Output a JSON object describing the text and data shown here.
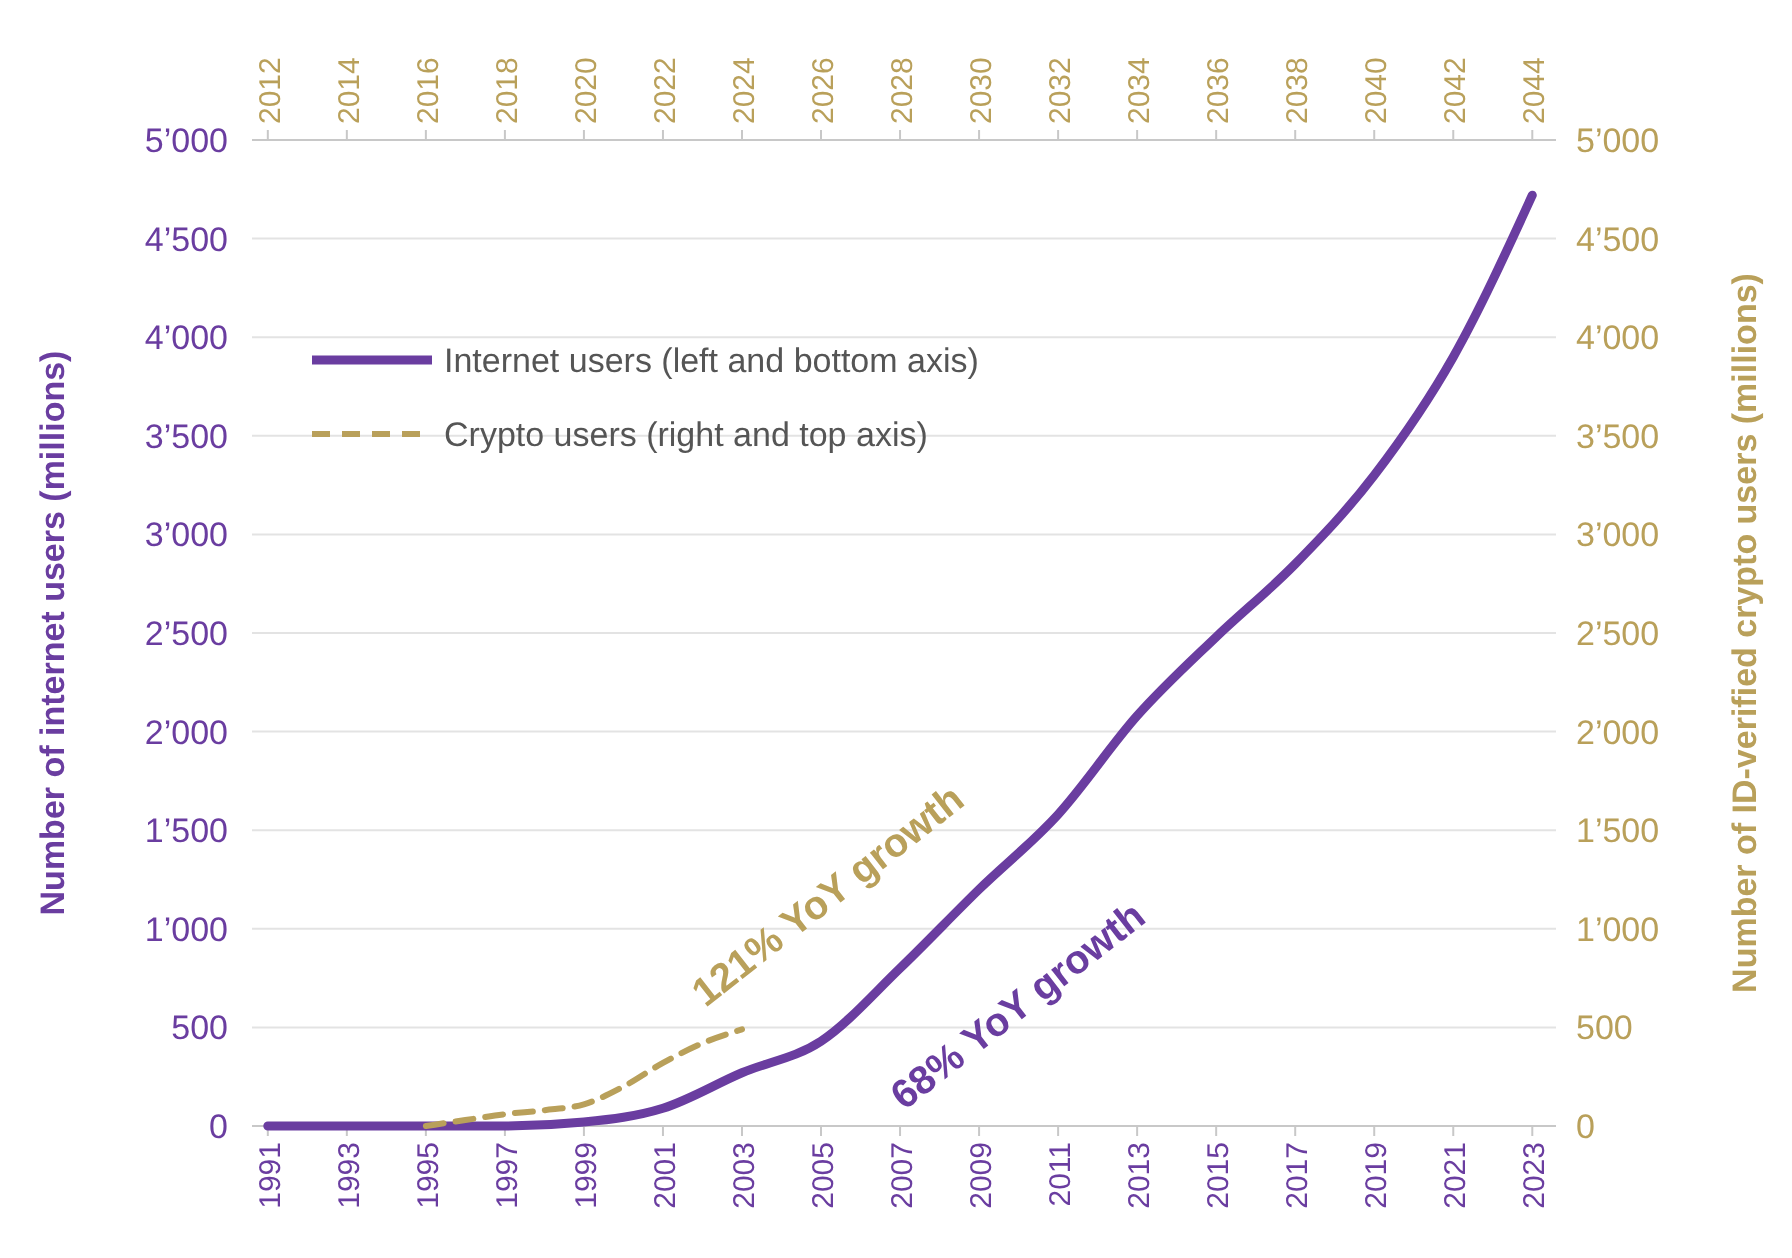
{
  "chart_data": {
    "type": "line",
    "ylabel": "Number of internet users (millions)",
    "y2label": "Number of ID-verified crypto users (millions)",
    "xlim": [
      1990.6,
      2023.6
    ],
    "xticks": [
      1991,
      1993,
      1995,
      1997,
      1999,
      2001,
      2003,
      2005,
      2007,
      2009,
      2011,
      2013,
      2015,
      2017,
      2019,
      2021,
      2023
    ],
    "x2lim": [
      2011.6,
      2044.6
    ],
    "x2ticks": [
      2012,
      2014,
      2016,
      2018,
      2020,
      2022,
      2024,
      2026,
      2028,
      2030,
      2032,
      2034,
      2036,
      2038,
      2040,
      2042,
      2044
    ],
    "ylim": [
      0,
      5000
    ],
    "yticks": [
      0,
      500,
      {
        "value": 1000,
        "label": "1’000"
      },
      {
        "value": 1500,
        "label": "1’500"
      },
      {
        "value": 2000,
        "label": "2’000"
      },
      {
        "value": 2500,
        "label": "2’500"
      },
      {
        "value": 3000,
        "label": "3’000"
      },
      {
        "value": 3500,
        "label": "3’500"
      },
      {
        "value": 4000,
        "label": "4’000"
      },
      {
        "value": 4500,
        "label": "4’500"
      },
      {
        "value": 5000,
        "label": "5’000"
      }
    ],
    "y2lim": [
      0,
      5000
    ],
    "y2ticks": [
      0,
      500,
      {
        "value": 1000,
        "label": "1’000"
      },
      {
        "value": 1500,
        "label": "1’500"
      },
      {
        "value": 2000,
        "label": "2’000"
      },
      {
        "value": 2500,
        "label": "2’500"
      },
      {
        "value": 3000,
        "label": "3’000"
      },
      {
        "value": 3500,
        "label": "3’500"
      },
      {
        "value": 4000,
        "label": "4’000"
      },
      {
        "value": 4500,
        "label": "4’500"
      },
      {
        "value": 5000,
        "label": "5’000"
      }
    ],
    "grid": "y",
    "legend": "top left",
    "marker": "none",
    "series": [
      {
        "name": "Internet users (left and bottom axis)",
        "color": "#6a3da0",
        "line_style": "solid",
        "x": [
          1991,
          1993,
          1995,
          1997,
          1999,
          2001,
          2003,
          2005,
          2007,
          2009,
          2011,
          2013,
          2015,
          2017,
          2019,
          2021,
          2023
        ],
        "values": [
          0,
          0,
          0,
          0,
          20,
          90,
          270,
          430,
          800,
          1200,
          1580,
          2080,
          2480,
          2850,
          3300,
          3900,
          4720
        ]
      },
      {
        "name": "Crypto users (right and top axis)",
        "color": "#b9a05a",
        "line_style": "dashed",
        "axis": "x2",
        "x": [
          2016,
          2017,
          2018,
          2019,
          2020,
          2021,
          2022,
          2023,
          2024
        ],
        "values": [
          0,
          30,
          60,
          80,
          110,
          200,
          320,
          420,
          490
        ]
      }
    ],
    "annotations": [
      "121% YoY growth",
      "68% YoY growth"
    ]
  }
}
